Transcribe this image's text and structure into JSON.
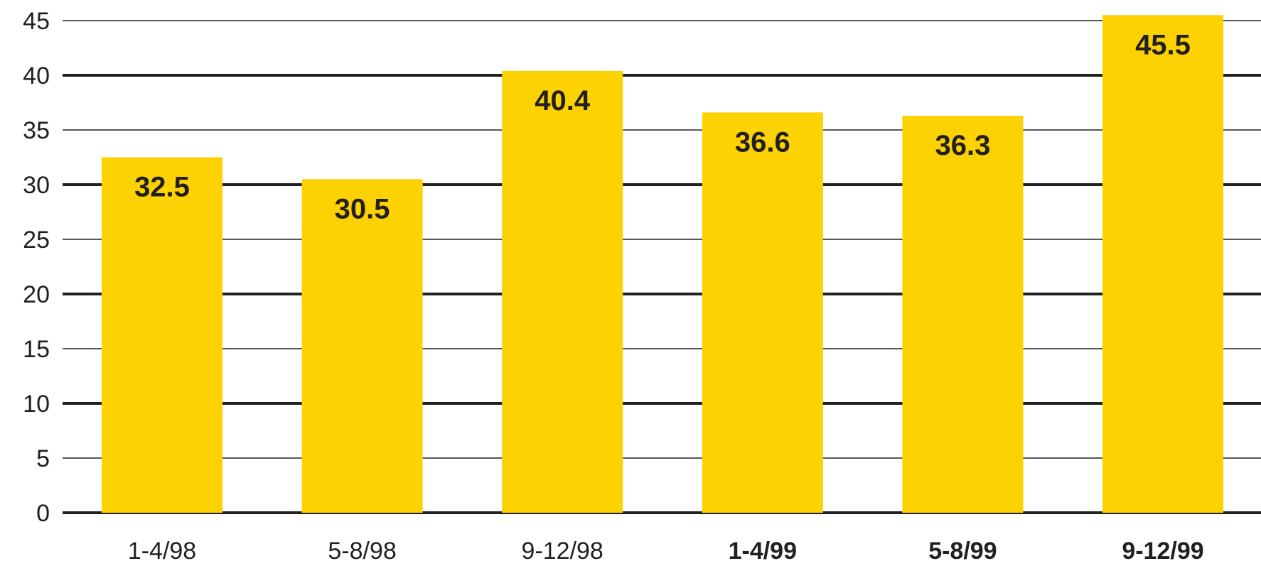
{
  "chart_data": {
    "type": "bar",
    "title": "",
    "xlabel": "",
    "ylabel": "",
    "categories": [
      "1-4/98",
      "5-8/98",
      "9-12/98",
      "1-4/99",
      "5-8/99",
      "9-12/99"
    ],
    "bold_categories": [
      "1-4/99",
      "5-8/99",
      "9-12/99"
    ],
    "values": [
      32.5,
      30.5,
      40.4,
      36.6,
      36.3,
      45.5
    ],
    "value_labels": [
      "32.5",
      "30.5",
      "40.4",
      "36.6",
      "36.3",
      "45.5"
    ],
    "ylim": [
      0,
      45
    ],
    "yticks": [
      "0",
      "5",
      "10",
      "15",
      "20",
      "25",
      "30",
      "35",
      "40",
      "45"
    ],
    "grid": true,
    "legend": "none",
    "colors": {
      "bar": "#fcd202",
      "text": "#231f20",
      "grid": "#231f20"
    }
  }
}
